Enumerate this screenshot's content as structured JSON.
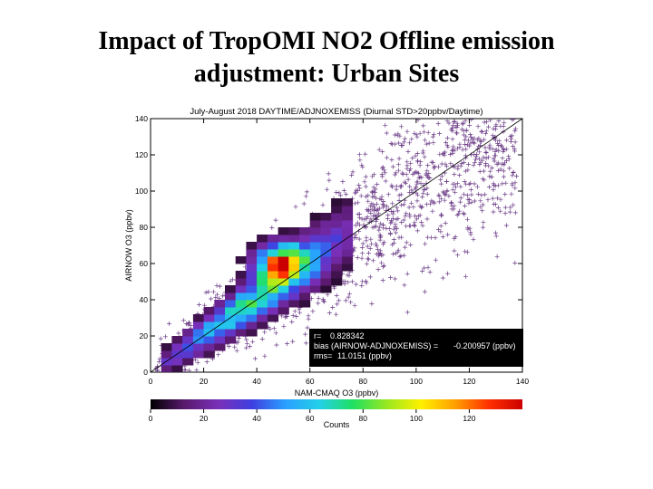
{
  "slide": {
    "title_line1": "Impact of TropOMI NO2 Offline emission",
    "title_line2": "adjustment: Urban Sites"
  },
  "chart_data": {
    "type": "heatmap",
    "title": "July-August 2018 DAYTIME/ADJNOXEMISS (Diurnal STD>20ppbv/Daytime)",
    "xlabel": "NAM-CMAQ O3 (ppbv)",
    "ylabel": "AIRNOW O3 (ppbv)",
    "xlim": [
      0,
      140
    ],
    "ylim": [
      0,
      140
    ],
    "x_ticks": [
      "0",
      "20",
      "40",
      "60",
      "80",
      "100",
      "120",
      "140"
    ],
    "y_ticks": [
      "0",
      "20",
      "40",
      "60",
      "80",
      "100",
      "120",
      "140"
    ],
    "one_to_one_line": true,
    "stats": {
      "r_label": "r=",
      "r_value": "0.828342",
      "bias_label": "bias (AIRNOW-ADJNOXEMISS) =",
      "bias_value": "-0.200957 (ppbv)",
      "rms_label": "rms=",
      "rms_value": "11.0151 (ppbv)"
    },
    "colorbar": {
      "label": "Counts",
      "ticks": [
        "0",
        "20",
        "40",
        "60",
        "80",
        "100",
        "120"
      ],
      "range": [
        0,
        140
      ],
      "colors": [
        "#000000",
        "#5a1a6e",
        "#7a2fb8",
        "#3f3fe0",
        "#2aa0ff",
        "#22d0e8",
        "#20e060",
        "#9ae820",
        "#fff000",
        "#ffa000",
        "#ff3000",
        "#cc0000"
      ]
    },
    "density": {
      "x_bin_width": 4,
      "center_start": 6,
      "center_end": 74,
      "core_center": {
        "x": 49,
        "y": 61
      },
      "peak_count": 135
    }
  }
}
